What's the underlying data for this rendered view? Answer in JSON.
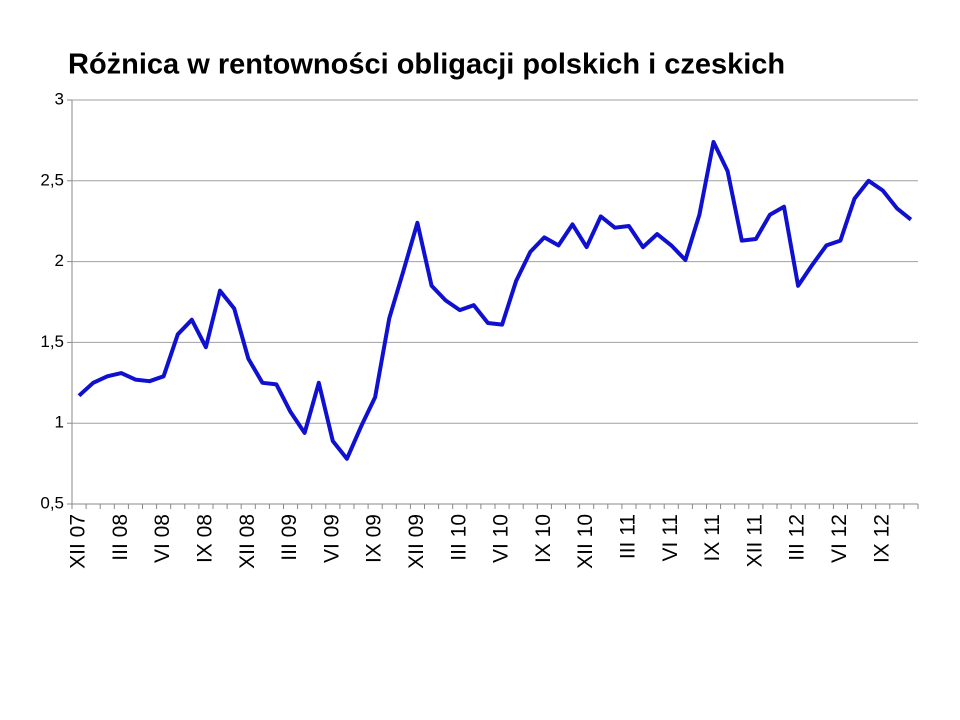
{
  "chart_data": {
    "type": "line",
    "title": "Różnica w rentowności obligacji polskich i czeskich",
    "categories": [
      "XII 07",
      null,
      null,
      "III 08",
      null,
      null,
      "VI 08",
      null,
      null,
      "IX 08",
      null,
      null,
      "XII 08",
      null,
      null,
      "III 09",
      null,
      null,
      "VI 09",
      null,
      null,
      "IX 09",
      null,
      null,
      "XII 09",
      null,
      null,
      "III 10",
      null,
      null,
      "VI 10",
      null,
      null,
      "IX 10",
      null,
      null,
      "XII 10",
      null,
      null,
      "III 11",
      null,
      null,
      "VI 11",
      null,
      null,
      "IX 11",
      null,
      null,
      "XII 11",
      null,
      null,
      "III 12",
      null,
      null,
      "VI 12",
      null,
      null,
      "IX 12",
      null,
      null
    ],
    "values": [
      1.17,
      1.25,
      1.29,
      1.31,
      1.27,
      1.26,
      1.29,
      1.55,
      1.64,
      1.47,
      1.82,
      1.71,
      1.4,
      1.25,
      1.24,
      1.07,
      0.94,
      1.25,
      0.89,
      0.78,
      0.98,
      1.16,
      1.65,
      1.94,
      2.24,
      1.85,
      1.76,
      1.7,
      1.73,
      1.62,
      1.61,
      1.88,
      2.06,
      2.15,
      2.1,
      2.23,
      2.09,
      2.28,
      2.21,
      2.22,
      2.09,
      2.17,
      2.1,
      2.01,
      2.29,
      2.74,
      2.56,
      2.13,
      2.14,
      2.29,
      2.34,
      1.85,
      1.98,
      2.1,
      2.13,
      2.39,
      2.5,
      2.44,
      2.33,
      2.26
    ],
    "color": "#1010d0",
    "ylim": [
      0.5,
      3
    ],
    "yticks": [
      {
        "value": 0.5,
        "label": "0,5"
      },
      1,
      {
        "value": 1.5,
        "label": "1,5"
      },
      2,
      {
        "value": 2.5,
        "label": "2,5"
      },
      3
    ],
    "grid": true
  }
}
